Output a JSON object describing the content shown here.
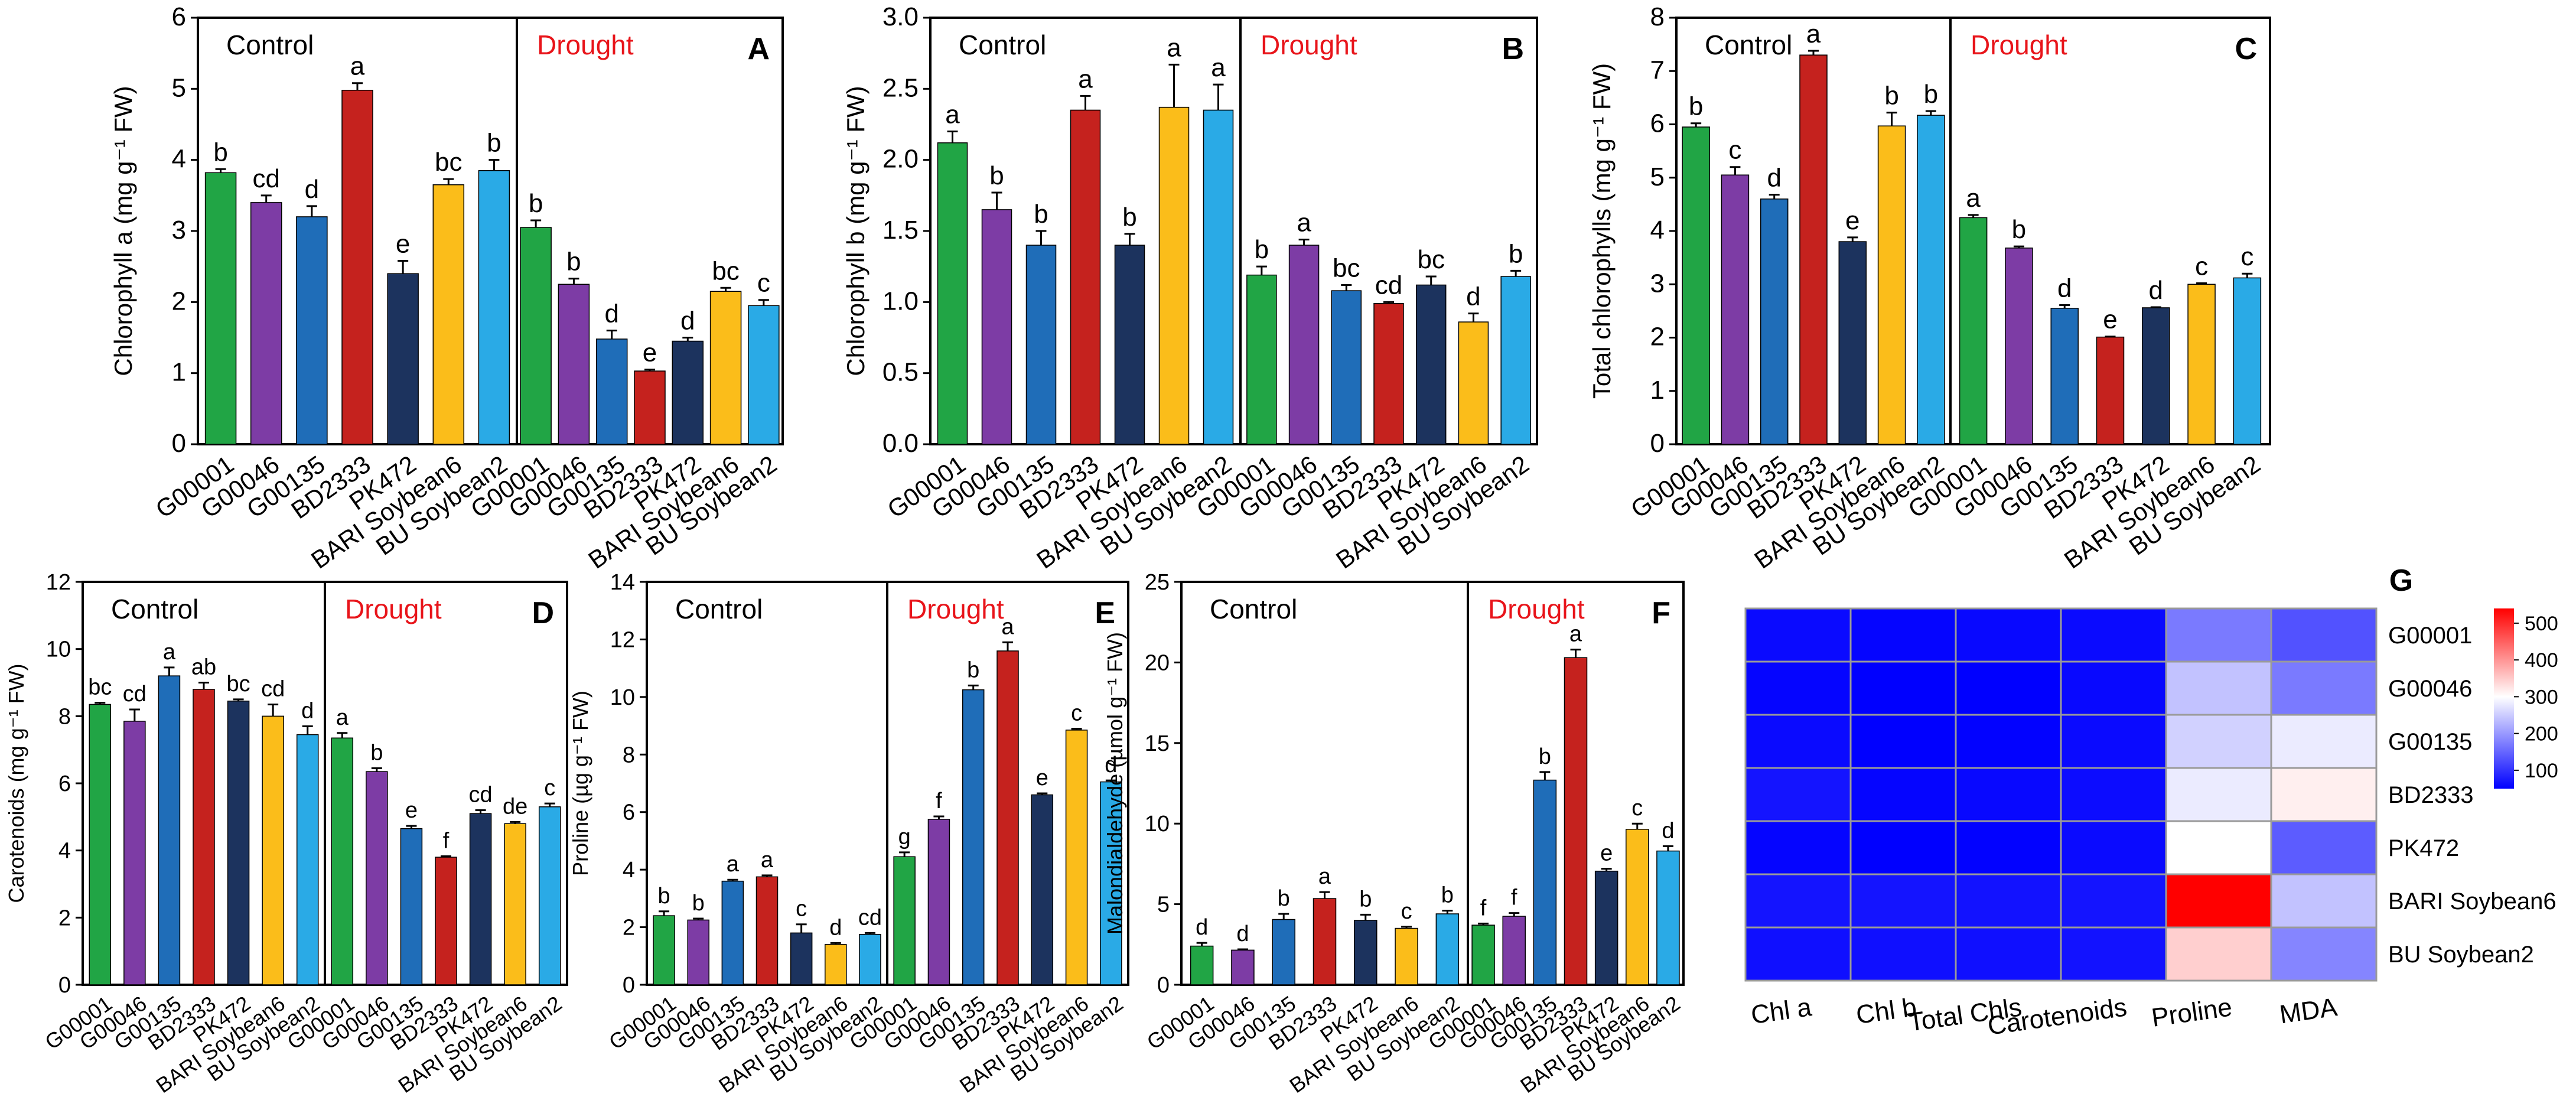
{
  "figure": {
    "genotypes": [
      "G00001",
      "G00046",
      "G00135",
      "BD2333",
      "PK472",
      "BARI Soybean6",
      "BU Soybean2"
    ],
    "colors": [
      "#21A545",
      "#7D3CA5",
      "#1F6DB8",
      "#C5221E",
      "#1C335E",
      "#FBBD1A",
      "#2AAAE6"
    ],
    "panels": [
      {
        "letter": "A",
        "ylabel": "Chlorophyll a (mg g⁻¹ FW)",
        "ylim": [
          0,
          6
        ],
        "ticks": [
          "0",
          "1",
          "2",
          "3",
          "4",
          "5",
          "6"
        ],
        "groups": [
          {
            "name": "Control",
            "values": [
              3.82,
              3.4,
              3.2,
              4.98,
              2.4,
              3.65,
              3.85
            ],
            "errors": [
              0.05,
              0.1,
              0.15,
              0.1,
              0.18,
              0.08,
              0.15
            ],
            "letters": [
              "b",
              "cd",
              "d",
              "a",
              "e",
              "bc",
              "b"
            ]
          },
          {
            "name": "Drought",
            "values": [
              3.05,
              2.25,
              1.48,
              1.03,
              1.45,
              2.15,
              1.95
            ],
            "errors": [
              0.1,
              0.08,
              0.12,
              0.02,
              0.05,
              0.05,
              0.08
            ],
            "letters": [
              "b",
              "b",
              "d",
              "e",
              "d",
              "bc",
              "c"
            ]
          }
        ]
      },
      {
        "letter": "B",
        "ylabel": "Chlorophyll b (mg g⁻¹ FW)",
        "ylim": [
          0,
          3
        ],
        "ticks": [
          "0.0",
          "0.5",
          "1.0",
          "1.5",
          "2.0",
          "2.5",
          "3.0"
        ],
        "groups": [
          {
            "name": "Control",
            "values": [
              2.12,
              1.65,
              1.4,
              2.35,
              1.4,
              2.37,
              2.35
            ],
            "errors": [
              0.08,
              0.12,
              0.1,
              0.1,
              0.08,
              0.3,
              0.18
            ],
            "letters": [
              "a",
              "b",
              "b",
              "a",
              "b",
              "a",
              "a"
            ]
          },
          {
            "name": "Drought",
            "values": [
              1.19,
              1.4,
              1.08,
              0.99,
              1.12,
              0.86,
              1.18
            ],
            "errors": [
              0.06,
              0.04,
              0.04,
              0.01,
              0.06,
              0.06,
              0.04
            ],
            "letters": [
              "b",
              "a",
              "bc",
              "cd",
              "bc",
              "d",
              "b"
            ]
          }
        ]
      },
      {
        "letter": "C",
        "ylabel": "Total chlorophylls (mg g⁻¹ FW)",
        "ylim": [
          0,
          8
        ],
        "ticks": [
          "0",
          "1",
          "2",
          "3",
          "4",
          "5",
          "6",
          "7",
          "8"
        ],
        "groups": [
          {
            "name": "Control",
            "values": [
              5.95,
              5.05,
              4.6,
              7.3,
              3.8,
              5.97,
              6.17
            ],
            "errors": [
              0.07,
              0.15,
              0.08,
              0.08,
              0.08,
              0.25,
              0.08
            ],
            "letters": [
              "b",
              "c",
              "d",
              "a",
              "e",
              "b",
              "b"
            ]
          },
          {
            "name": "Drought",
            "values": [
              4.25,
              3.68,
              2.55,
              2.01,
              2.56,
              3.0,
              3.12
            ],
            "errors": [
              0.05,
              0.03,
              0.06,
              0.01,
              0.01,
              0.02,
              0.08
            ],
            "letters": [
              "a",
              "b",
              "d",
              "e",
              "d",
              "c",
              "c"
            ]
          }
        ]
      },
      {
        "letter": "D",
        "ylabel": "Carotenoids (mg g⁻¹ FW)",
        "ylim": [
          0,
          12
        ],
        "ticks": [
          "0",
          "2",
          "4",
          "6",
          "8",
          "10",
          "12"
        ],
        "groups": [
          {
            "name": "Control",
            "values": [
              8.35,
              7.85,
              9.2,
              8.8,
              8.45,
              8.0,
              7.45
            ],
            "errors": [
              0.05,
              0.35,
              0.25,
              0.2,
              0.05,
              0.35,
              0.25
            ],
            "letters": [
              "bc",
              "cd",
              "a",
              "ab",
              "bc",
              "cd",
              "d"
            ]
          },
          {
            "name": "Drought",
            "values": [
              7.35,
              6.35,
              4.65,
              3.8,
              5.1,
              4.8,
              5.3
            ],
            "errors": [
              0.15,
              0.1,
              0.08,
              0.03,
              0.1,
              0.05,
              0.1
            ],
            "letters": [
              "a",
              "b",
              "e",
              "f",
              "cd",
              "de",
              "c"
            ]
          }
        ]
      },
      {
        "letter": "E",
        "ylabel": "Proline (µg g⁻¹ FW)",
        "ylim": [
          0,
          14
        ],
        "ticks": [
          "0",
          "2",
          "4",
          "6",
          "8",
          "10",
          "12",
          "14"
        ],
        "groups": [
          {
            "name": "Control",
            "values": [
              2.4,
              2.25,
              3.6,
              3.75,
              1.8,
              1.4,
              1.75
            ],
            "errors": [
              0.15,
              0.05,
              0.05,
              0.05,
              0.3,
              0.05,
              0.05
            ],
            "letters": [
              "b",
              "b",
              "a",
              "a",
              "c",
              "d",
              "cd"
            ]
          },
          {
            "name": "Drought",
            "values": [
              4.45,
              5.75,
              10.25,
              11.6,
              6.6,
              8.85,
              7.05
            ],
            "errors": [
              0.15,
              0.1,
              0.15,
              0.3,
              0.05,
              0.05,
              0.05
            ],
            "letters": [
              "g",
              "f",
              "b",
              "a",
              "e",
              "c",
              "d"
            ]
          }
        ]
      },
      {
        "letter": "F",
        "ylabel": "Malondialdehyde (µmol g⁻¹ FW)",
        "ylim": [
          0,
          25
        ],
        "ticks": [
          "0",
          "5",
          "10",
          "15",
          "20",
          "25"
        ],
        "groups": [
          {
            "name": "Control",
            "values": [
              2.4,
              2.15,
              4.05,
              5.35,
              4.0,
              3.5,
              4.4
            ],
            "errors": [
              0.2,
              0.05,
              0.35,
              0.4,
              0.35,
              0.1,
              0.2
            ],
            "letters": [
              "d",
              "d",
              "b",
              "a",
              "b",
              "c",
              "b"
            ]
          },
          {
            "name": "Drought",
            "values": [
              3.7,
              4.25,
              12.7,
              20.3,
              7.05,
              9.65,
              8.3
            ],
            "errors": [
              0.1,
              0.2,
              0.5,
              0.5,
              0.15,
              0.35,
              0.3
            ],
            "letters": [
              "f",
              "f",
              "b",
              "a",
              "e",
              "c",
              "d"
            ]
          }
        ]
      }
    ],
    "heatmap": {
      "letter": "G",
      "columns": [
        "Chl a",
        "Chl b",
        "Total Chls",
        "Carotenoids",
        "Proline",
        "MDA"
      ],
      "rows": [
        "G00001",
        "G00046",
        "G00135",
        "BD2333",
        "PK472",
        "BARI Soybean6",
        "BU Soybean2"
      ],
      "values": [
        [
          60,
          55,
          58,
          60,
          170,
          130
        ],
        [
          55,
          40,
          50,
          58,
          240,
          170
        ],
        [
          60,
          50,
          52,
          60,
          255,
          280
        ],
        [
          70,
          55,
          58,
          62,
          280,
          315
        ],
        [
          55,
          50,
          52,
          60,
          300,
          140
        ],
        [
          70,
          70,
          68,
          70,
          540,
          240
        ],
        [
          65,
          65,
          65,
          68,
          345,
          180
        ]
      ],
      "colorbar_ticks": [
        "100",
        "200",
        "300",
        "400",
        "500"
      ],
      "color_min": 50,
      "color_mid": 300,
      "color_max": 540,
      "low_color": "#0000FF",
      "mid_color": "#FFFFFF",
      "high_color": "#FF0000"
    }
  }
}
